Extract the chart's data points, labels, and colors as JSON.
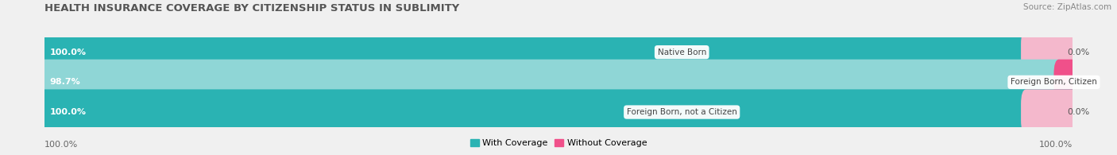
{
  "title": "HEALTH INSURANCE COVERAGE BY CITIZENSHIP STATUS IN SUBLIMITY",
  "source": "Source: ZipAtlas.com",
  "categories": [
    "Native Born",
    "Foreign Born, Citizen",
    "Foreign Born, not a Citizen"
  ],
  "with_coverage": [
    100.0,
    98.7,
    100.0
  ],
  "without_coverage": [
    0.0,
    1.3,
    0.0
  ],
  "color_with_dark": "#2ab3b3",
  "color_with_light": "#8fd6d6",
  "color_without_hot": "#f0508a",
  "color_without_light": "#f4b8cc",
  "bg_color": "#f0f0f0",
  "bar_bg": "#e0e0e0",
  "title_fontsize": 9.5,
  "label_fontsize": 8,
  "tick_fontsize": 8,
  "source_fontsize": 7.5,
  "bottom_labels": [
    "100.0%",
    "100.0%"
  ]
}
